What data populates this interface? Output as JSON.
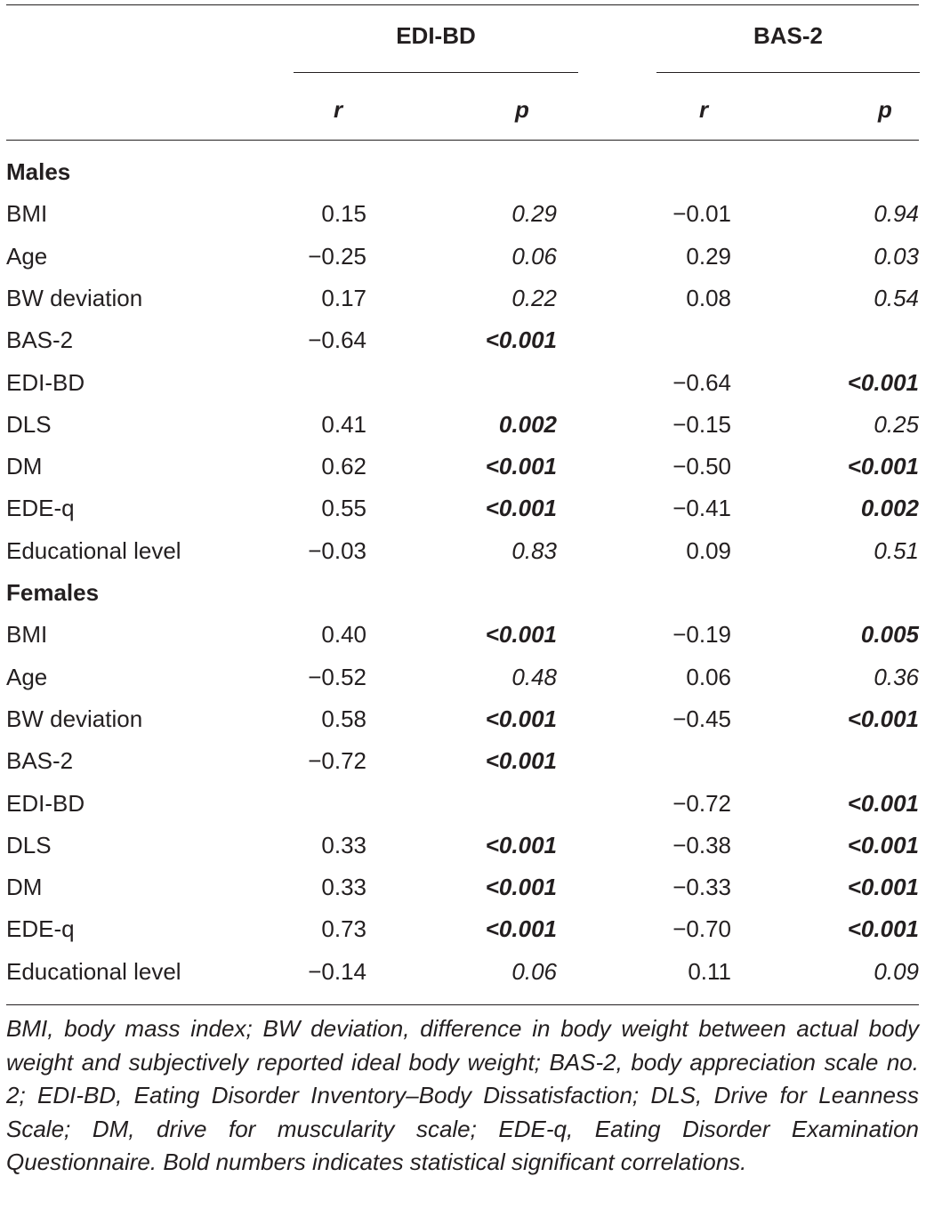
{
  "header": {
    "groups": [
      {
        "label": "EDI-BD"
      },
      {
        "label": "BAS-2"
      }
    ],
    "subheaders": [
      "r",
      "p",
      "r",
      "p"
    ]
  },
  "rows": [
    {
      "type": "section",
      "label": "Males"
    },
    {
      "type": "data",
      "label": "BMI",
      "edi_r": "0.15",
      "edi_p": "0.29",
      "edi_p_bold": false,
      "bas_r": "−0.01",
      "bas_p": "0.94",
      "bas_p_bold": false
    },
    {
      "type": "data",
      "label": "Age",
      "edi_r": "−0.25",
      "edi_p": "0.06",
      "edi_p_bold": false,
      "bas_r": "0.29",
      "bas_p": "0.03",
      "bas_p_bold": false
    },
    {
      "type": "data",
      "label": "BW deviation",
      "edi_r": "0.17",
      "edi_p": "0.22",
      "edi_p_bold": false,
      "bas_r": "0.08",
      "bas_p": "0.54",
      "bas_p_bold": false
    },
    {
      "type": "data",
      "label": "BAS-2",
      "edi_r": "−0.64",
      "edi_p": "<0.001",
      "edi_p_bold": true,
      "bas_r": "",
      "bas_p": "",
      "bas_p_bold": false
    },
    {
      "type": "data",
      "label": "EDI-BD",
      "edi_r": "",
      "edi_p": "",
      "edi_p_bold": false,
      "bas_r": "−0.64",
      "bas_p": "<0.001",
      "bas_p_bold": true
    },
    {
      "type": "data",
      "label": "DLS",
      "edi_r": "0.41",
      "edi_p": "0.002",
      "edi_p_bold": true,
      "bas_r": "−0.15",
      "bas_p": "0.25",
      "bas_p_bold": false
    },
    {
      "type": "data",
      "label": "DM",
      "edi_r": "0.62",
      "edi_p": "<0.001",
      "edi_p_bold": true,
      "bas_r": "−0.50",
      "bas_p": "<0.001",
      "bas_p_bold": true
    },
    {
      "type": "data",
      "label": "EDE-q",
      "edi_r": "0.55",
      "edi_p": "<0.001",
      "edi_p_bold": true,
      "bas_r": "−0.41",
      "bas_p": "0.002",
      "bas_p_bold": true
    },
    {
      "type": "data",
      "label": "Educational level",
      "edi_r": "−0.03",
      "edi_p": "0.83",
      "edi_p_bold": false,
      "bas_r": "0.09",
      "bas_p": "0.51",
      "bas_p_bold": false
    },
    {
      "type": "section",
      "label": "Females"
    },
    {
      "type": "data",
      "label": "BMI",
      "edi_r": "0.40",
      "edi_p": "<0.001",
      "edi_p_bold": true,
      "bas_r": "−0.19",
      "bas_p": "0.005",
      "bas_p_bold": true
    },
    {
      "type": "data",
      "label": "Age",
      "edi_r": "−0.52",
      "edi_p": "0.48",
      "edi_p_bold": false,
      "bas_r": "0.06",
      "bas_p": "0.36",
      "bas_p_bold": false
    },
    {
      "type": "data",
      "label": "BW deviation",
      "edi_r": "0.58",
      "edi_p": "<0.001",
      "edi_p_bold": true,
      "bas_r": "−0.45",
      "bas_p": "<0.001",
      "bas_p_bold": true
    },
    {
      "type": "data",
      "label": "BAS-2",
      "edi_r": "−0.72",
      "edi_p": "<0.001",
      "edi_p_bold": true,
      "bas_r": "",
      "bas_p": "",
      "bas_p_bold": false
    },
    {
      "type": "data",
      "label": "EDI-BD",
      "edi_r": "",
      "edi_p": "",
      "edi_p_bold": false,
      "bas_r": "−0.72",
      "bas_p": "<0.001",
      "bas_p_bold": true
    },
    {
      "type": "data",
      "label": "DLS",
      "edi_r": "0.33",
      "edi_p": "<0.001",
      "edi_p_bold": true,
      "bas_r": "−0.38",
      "bas_p": "<0.001",
      "bas_p_bold": true
    },
    {
      "type": "data",
      "label": "DM",
      "edi_r": "0.33",
      "edi_p": "<0.001",
      "edi_p_bold": true,
      "bas_r": "−0.33",
      "bas_p": "<0.001",
      "bas_p_bold": true
    },
    {
      "type": "data",
      "label": "EDE-q",
      "edi_r": "0.73",
      "edi_p": "<0.001",
      "edi_p_bold": true,
      "bas_r": "−0.70",
      "bas_p": "<0.001",
      "bas_p_bold": true
    },
    {
      "type": "data",
      "label": "Educational level",
      "edi_r": "−0.14",
      "edi_p": "0.06",
      "edi_p_bold": false,
      "bas_r": "0.11",
      "bas_p": "0.09",
      "bas_p_bold": false
    }
  ],
  "footnote": "BMI, body mass index; BW deviation, difference in body weight between actual body weight and subjectively reported ideal body weight; BAS-2, body appreciation scale no. 2; EDI-BD, Eating Disorder Inventory–Body Dissatisfaction; DLS, Drive for Leanness Scale; DM, drive for muscularity scale; EDE-q, Eating Disorder Examination Questionnaire. Bold numbers indicates statistical significant correlations."
}
